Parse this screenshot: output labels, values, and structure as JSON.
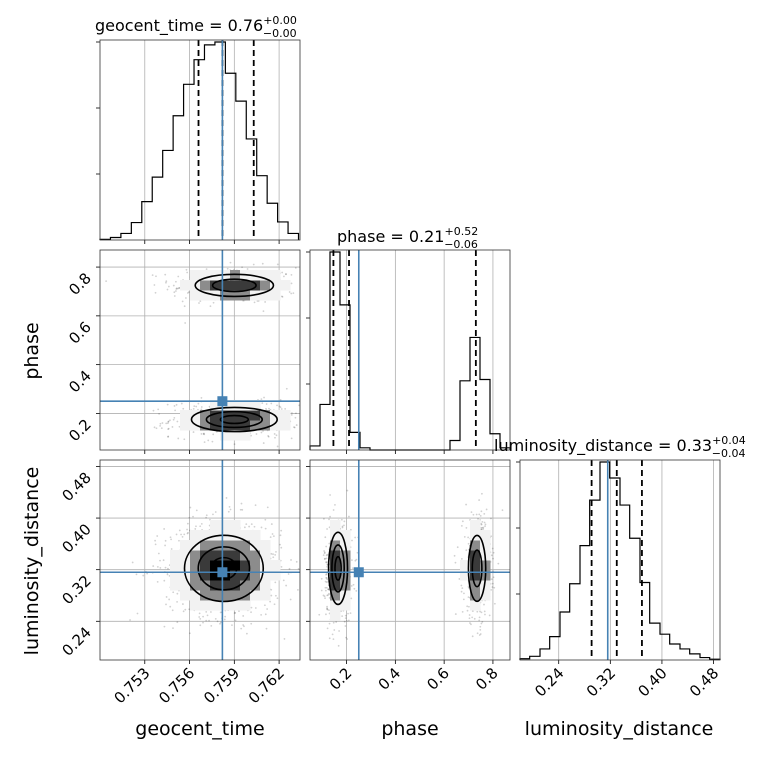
{
  "chart_data": {
    "type": "corner",
    "parameters": [
      "geocent_time",
      "phase",
      "luminosity_distance"
    ],
    "truth": {
      "geocent_time": 0.7582,
      "phase": 0.25,
      "luminosity_distance": 0.316
    },
    "truth_color": "#4682b4",
    "grid": true,
    "axes": {
      "geocent_time": {
        "range": [
          0.75,
          0.7634
        ],
        "ticks": [
          0.753,
          0.756,
          0.759,
          0.762
        ],
        "tick_labels": [
          "0.753",
          "0.756",
          "0.759",
          "0.762"
        ],
        "label": "geocent_time"
      },
      "phase": {
        "range": [
          0.05,
          0.87
        ],
        "ticks": [
          0.2,
          0.4,
          0.6,
          0.8
        ],
        "tick_labels": [
          "0.2",
          "0.4",
          "0.6",
          "0.8"
        ],
        "label": "phase"
      },
      "luminosity_distance": {
        "range": [
          0.18,
          0.49
        ],
        "ticks": [
          0.24,
          0.32,
          0.4,
          0.48
        ],
        "tick_labels": [
          "0.24",
          "0.32",
          "0.40",
          "0.48"
        ],
        "label": "luminosity_distance"
      }
    },
    "titles": [
      {
        "param": "geocent_time",
        "text": "geocent_time = 0.76",
        "plus": "+0.00",
        "minus": "−0.00"
      },
      {
        "param": "phase",
        "text": "phase = 0.21",
        "plus": "+0.52",
        "minus": "−0.06"
      },
      {
        "param": "luminosity_distance",
        "text": "luminosity_distance = 0.33",
        "plus": "+0.04",
        "minus": "−0.04"
      }
    ],
    "histograms": {
      "geocent_time": {
        "edges": [
          0.75,
          0.7507,
          0.7514,
          0.7521,
          0.7528,
          0.7535,
          0.7542,
          0.7549,
          0.7556,
          0.7563,
          0.757,
          0.7577,
          0.7584,
          0.7591,
          0.7598,
          0.7605,
          0.7612,
          0.7619,
          0.7626,
          0.7633
        ],
        "counts": [
          0.3,
          1.2,
          3.2,
          8.5,
          18.7,
          30.6,
          43.6,
          60.5,
          75.8,
          87.8,
          95.0,
          96.4,
          81.2,
          67.6,
          49.2,
          31.3,
          17.9,
          8.8,
          3.2
        ],
        "quantiles": [
          0.7566,
          0.7582,
          0.7603
        ]
      },
      "phase": {
        "edges": [
          0.05,
          0.091,
          0.132,
          0.173,
          0.214,
          0.255,
          0.296,
          0.337,
          0.378,
          0.419,
          0.46,
          0.501,
          0.542,
          0.583,
          0.624,
          0.665,
          0.706,
          0.747,
          0.788,
          0.829,
          0.87
        ],
        "counts": [
          1.5,
          16.8,
          73.0,
          53.5,
          6.5,
          0.8,
          0,
          0,
          0,
          0,
          0,
          0,
          0,
          0,
          3.5,
          25.5,
          41.5,
          26.0,
          6.0,
          0.8
        ],
        "quantiles": [
          0.146,
          0.21,
          0.73
        ]
      },
      "luminosity_distance": {
        "edges": [
          0.18,
          0.195,
          0.211,
          0.226,
          0.242,
          0.257,
          0.273,
          0.288,
          0.304,
          0.319,
          0.335,
          0.35,
          0.366,
          0.381,
          0.397,
          0.412,
          0.428,
          0.443,
          0.459,
          0.474,
          0.49
        ],
        "counts": [
          0.5,
          1.5,
          4.5,
          9.5,
          19.5,
          31.0,
          46.5,
          65.0,
          80.5,
          74.0,
          63.0,
          49.5,
          31.5,
          15.0,
          10.5,
          6.5,
          4.5,
          2.5,
          1.0,
          0.3
        ],
        "quantiles": [
          0.291,
          0.33,
          0.369
        ]
      }
    },
    "joint_panels": [
      {
        "x": "geocent_time",
        "y": "phase",
        "modes": [
          {
            "cx": 0.759,
            "cy": 0.725,
            "sx": 0.00185,
            "sy": 0.032,
            "weight": 0.45
          },
          {
            "cx": 0.759,
            "cy": 0.175,
            "sx": 0.00185,
            "sy": 0.032,
            "weight": 0.55
          }
        ]
      },
      {
        "x": "geocent_time",
        "y": "luminosity_distance",
        "modes": [
          {
            "cx": 0.7583,
            "cy": 0.322,
            "sx": 0.0017,
            "sy": 0.033,
            "weight": 1.0
          }
        ]
      },
      {
        "x": "phase",
        "y": "luminosity_distance",
        "modes": [
          {
            "cx": 0.165,
            "cy": 0.322,
            "sx": 0.025,
            "sy": 0.036,
            "weight": 0.55
          },
          {
            "cx": 0.735,
            "cy": 0.322,
            "sx": 0.025,
            "sy": 0.036,
            "weight": 0.45
          }
        ]
      }
    ]
  }
}
